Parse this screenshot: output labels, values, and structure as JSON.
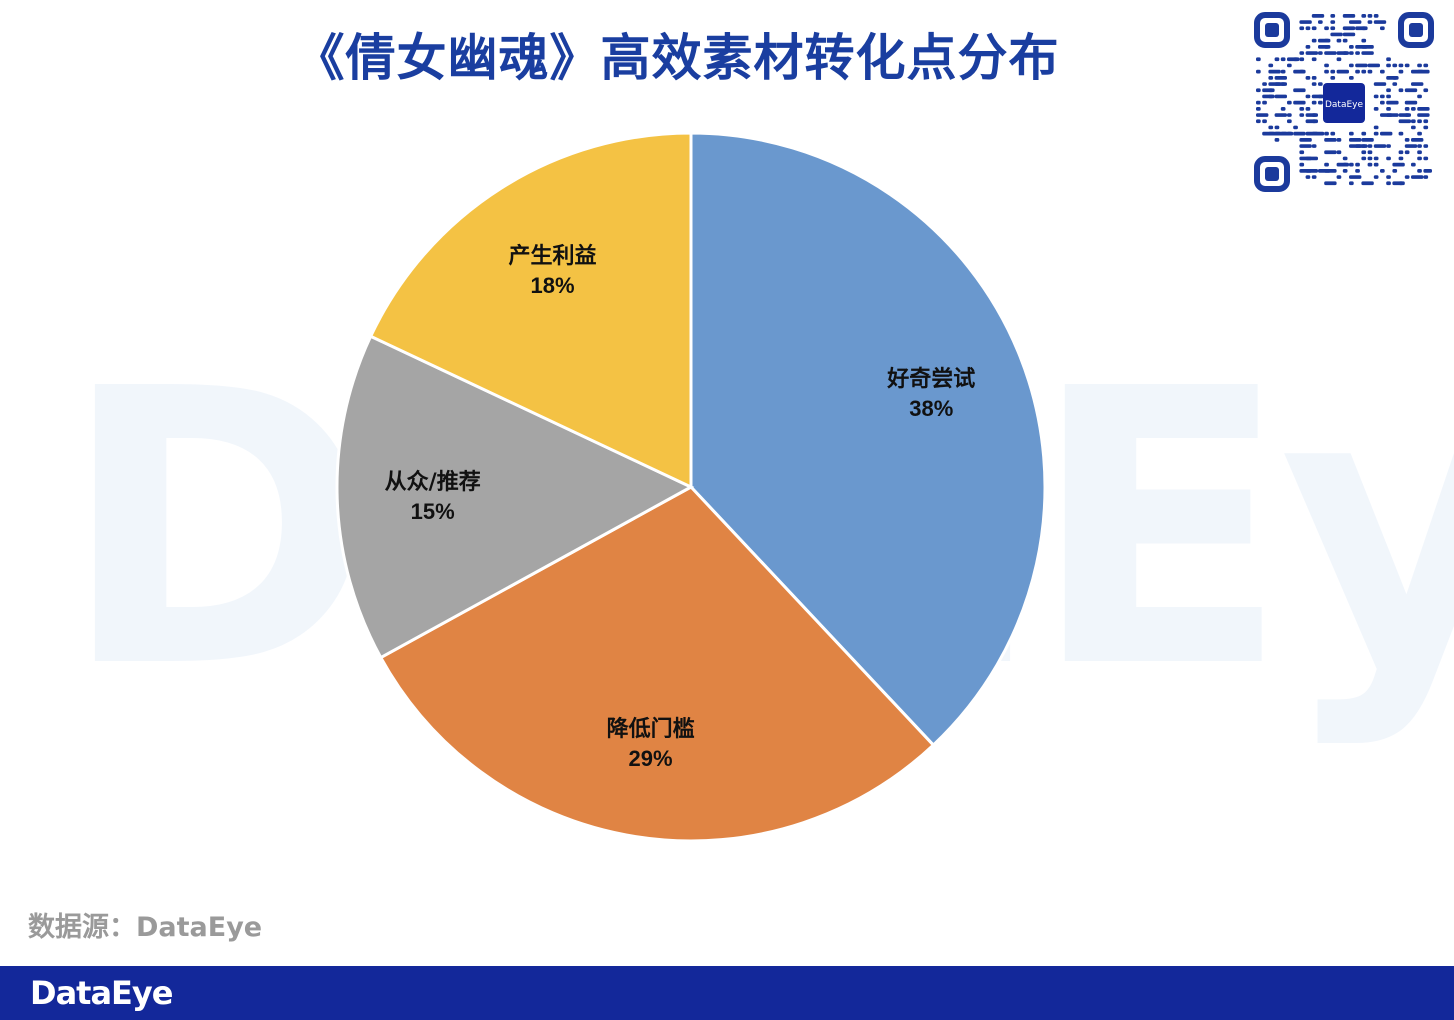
{
  "title": "《倩女幽魂》高效素材转化点分布",
  "watermark_text": "DataEye",
  "qr_badge_text": "DataEye",
  "source": "数据源：DataEye",
  "footer_logo": "DataEye",
  "colors": {
    "title": "#1a3ea0",
    "footer": "#13289a",
    "slice_1": "#6a98ce",
    "slice_2": "#e08444",
    "slice_3": "#a5a5a5",
    "slice_4": "#f4c244"
  },
  "chart_data": {
    "type": "pie",
    "title": "《倩女幽魂》高效素材转化点分布",
    "start": "12 o'clock, clockwise",
    "slices": [
      {
        "label": "好奇尝试",
        "value": 38,
        "value_label": "38%",
        "color": "#6a98ce"
      },
      {
        "label": "降低门槛",
        "value": 29,
        "value_label": "29%",
        "color": "#e08444"
      },
      {
        "label": "从众/推荐",
        "value": 15,
        "value_label": "15%",
        "color": "#a5a5a5"
      },
      {
        "label": "产生利益",
        "value": 18,
        "value_label": "18%",
        "color": "#f4c244"
      }
    ],
    "legend": "none"
  }
}
